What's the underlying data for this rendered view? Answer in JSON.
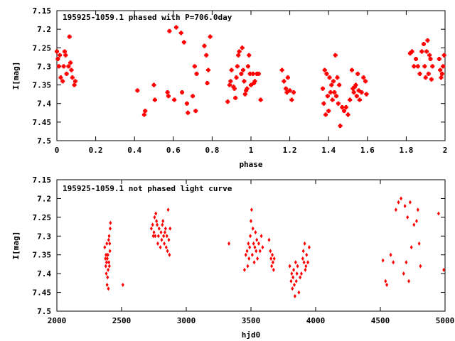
{
  "chart_data": [
    {
      "type": "scatter",
      "title": "195925-1059.1 phased with P=706.0day",
      "xlabel": "phase",
      "ylabel": "I[mag]",
      "xlim": [
        0,
        2
      ],
      "ylim": [
        7.15,
        7.5
      ],
      "y_inverted": true,
      "x_ticks": [
        "0",
        "0.2",
        "0.4",
        "0.6",
        "0.8",
        "1",
        "1.2",
        "1.4",
        "1.6",
        "1.8",
        "2"
      ],
      "y_ticks": [
        "7.15",
        "7.2",
        "7.25",
        "7.3",
        "7.35",
        "7.4",
        "7.45",
        "7.5"
      ],
      "marker_color": "#ff0000",
      "marker": "plus",
      "points": [
        [
          0.0,
          7.26
        ],
        [
          0.005,
          7.28
        ],
        [
          0.01,
          7.3
        ],
        [
          0.015,
          7.27
        ],
        [
          0.02,
          7.33
        ],
        [
          0.03,
          7.34
        ],
        [
          0.035,
          7.3
        ],
        [
          0.04,
          7.26
        ],
        [
          0.045,
          7.27
        ],
        [
          0.05,
          7.32
        ],
        [
          0.06,
          7.3
        ],
        [
          0.065,
          7.22
        ],
        [
          0.07,
          7.29
        ],
        [
          0.075,
          7.31
        ],
        [
          0.08,
          7.33
        ],
        [
          0.09,
          7.35
        ],
        [
          0.095,
          7.34
        ],
        [
          0.415,
          7.365
        ],
        [
          0.45,
          7.43
        ],
        [
          0.455,
          7.42
        ],
        [
          0.5,
          7.35
        ],
        [
          0.505,
          7.39
        ],
        [
          0.57,
          7.37
        ],
        [
          0.575,
          7.38
        ],
        [
          0.58,
          7.205
        ],
        [
          0.605,
          7.39
        ],
        [
          0.615,
          7.195
        ],
        [
          0.64,
          7.21
        ],
        [
          0.645,
          7.37
        ],
        [
          0.655,
          7.235
        ],
        [
          0.67,
          7.4
        ],
        [
          0.675,
          7.425
        ],
        [
          0.7,
          7.38
        ],
        [
          0.71,
          7.3
        ],
        [
          0.715,
          7.42
        ],
        [
          0.72,
          7.32
        ],
        [
          0.76,
          7.245
        ],
        [
          0.77,
          7.27
        ],
        [
          0.775,
          7.345
        ],
        [
          0.78,
          7.31
        ],
        [
          0.79,
          7.22
        ],
        [
          0.88,
          7.395
        ],
        [
          0.89,
          7.35
        ],
        [
          0.895,
          7.34
        ],
        [
          0.9,
          7.31
        ],
        [
          0.91,
          7.355
        ],
        [
          0.915,
          7.36
        ],
        [
          0.92,
          7.385
        ],
        [
          0.925,
          7.33
        ],
        [
          0.93,
          7.3
        ],
        [
          0.935,
          7.27
        ],
        [
          0.94,
          7.26
        ],
        [
          0.95,
          7.32
        ],
        [
          0.955,
          7.25
        ],
        [
          0.96,
          7.31
        ],
        [
          0.965,
          7.34
        ],
        [
          0.97,
          7.375
        ],
        [
          0.975,
          7.365
        ],
        [
          0.98,
          7.36
        ],
        [
          0.985,
          7.3
        ],
        [
          0.99,
          7.27
        ],
        [
          0.995,
          7.32
        ],
        [
          1.0,
          7.35
        ],
        [
          1.01,
          7.32
        ],
        [
          1.015,
          7.345
        ],
        [
          1.02,
          7.34
        ],
        [
          1.03,
          7.32
        ],
        [
          1.04,
          7.32
        ],
        [
          1.05,
          7.39
        ],
        [
          1.16,
          7.31
        ],
        [
          1.17,
          7.34
        ],
        [
          1.18,
          7.36
        ],
        [
          1.185,
          7.37
        ],
        [
          1.19,
          7.33
        ],
        [
          1.2,
          7.365
        ],
        [
          1.21,
          7.39
        ],
        [
          1.22,
          7.37
        ],
        [
          1.37,
          7.36
        ],
        [
          1.375,
          7.4
        ],
        [
          1.38,
          7.31
        ],
        [
          1.385,
          7.43
        ],
        [
          1.39,
          7.32
        ],
        [
          1.395,
          7.38
        ],
        [
          1.4,
          7.42
        ],
        [
          1.405,
          7.33
        ],
        [
          1.41,
          7.37
        ],
        [
          1.415,
          7.35
        ],
        [
          1.42,
          7.39
        ],
        [
          1.425,
          7.34
        ],
        [
          1.43,
          7.37
        ],
        [
          1.435,
          7.27
        ],
        [
          1.44,
          7.38
        ],
        [
          1.445,
          7.33
        ],
        [
          1.45,
          7.4
        ],
        [
          1.455,
          7.35
        ],
        [
          1.46,
          7.46
        ],
        [
          1.47,
          7.41
        ],
        [
          1.48,
          7.42
        ],
        [
          1.49,
          7.41
        ],
        [
          1.5,
          7.43
        ],
        [
          1.51,
          7.39
        ],
        [
          1.52,
          7.31
        ],
        [
          1.525,
          7.36
        ],
        [
          1.53,
          7.37
        ],
        [
          1.535,
          7.355
        ],
        [
          1.54,
          7.35
        ],
        [
          1.545,
          7.38
        ],
        [
          1.55,
          7.32
        ],
        [
          1.555,
          7.365
        ],
        [
          1.56,
          7.39
        ],
        [
          1.57,
          7.37
        ],
        [
          1.58,
          7.33
        ],
        [
          1.59,
          7.34
        ],
        [
          1.595,
          7.375
        ],
        [
          1.82,
          7.265
        ],
        [
          1.83,
          7.26
        ],
        [
          1.84,
          7.3
        ],
        [
          1.85,
          7.28
        ],
        [
          1.86,
          7.3
        ],
        [
          1.87,
          7.32
        ],
        [
          1.88,
          7.26
        ],
        [
          1.89,
          7.24
        ],
        [
          1.895,
          7.3
        ],
        [
          1.9,
          7.33
        ],
        [
          1.905,
          7.26
        ],
        [
          1.91,
          7.23
        ],
        [
          1.915,
          7.32
        ],
        [
          1.92,
          7.27
        ],
        [
          1.925,
          7.28
        ],
        [
          1.93,
          7.335
        ],
        [
          1.935,
          7.3
        ],
        [
          1.97,
          7.28
        ],
        [
          1.975,
          7.31
        ],
        [
          1.98,
          7.33
        ],
        [
          1.985,
          7.32
        ],
        [
          1.99,
          7.3
        ],
        [
          1.995,
          7.27
        ]
      ]
    },
    {
      "type": "scatter",
      "title": "195925-1059.1 not phased light curve",
      "xlabel": "hjd0",
      "ylabel": "I[mag]",
      "xlim": [
        2000,
        5000
      ],
      "ylim": [
        7.15,
        7.5
      ],
      "y_inverted": true,
      "x_ticks": [
        "2000",
        "2500",
        "3000",
        "3500",
        "4000",
        "4500",
        "5000"
      ],
      "y_ticks": [
        "7.15",
        "7.2",
        "7.25",
        "7.3",
        "7.35",
        "7.4",
        "7.45",
        "7.5"
      ],
      "marker_color": "#ff0000",
      "marker": "diamond",
      "points": [
        [
          2370,
          7.33
        ],
        [
          2375,
          7.36
        ],
        [
          2378,
          7.38
        ],
        [
          2380,
          7.35
        ],
        [
          2382,
          7.4
        ],
        [
          2384,
          7.37
        ],
        [
          2386,
          7.32
        ],
        [
          2388,
          7.43
        ],
        [
          2390,
          7.36
        ],
        [
          2392,
          7.41
        ],
        [
          2394,
          7.35
        ],
        [
          2396,
          7.39
        ],
        [
          2398,
          7.44
        ],
        [
          2400,
          7.31
        ],
        [
          2402,
          7.37
        ],
        [
          2404,
          7.3
        ],
        [
          2406,
          7.38
        ],
        [
          2408,
          7.32
        ],
        [
          2410,
          7.34
        ],
        [
          2412,
          7.28
        ],
        [
          2414,
          7.265
        ],
        [
          2510,
          7.43
        ],
        [
          2730,
          7.28
        ],
        [
          2740,
          7.27
        ],
        [
          2745,
          7.3
        ],
        [
          2750,
          7.29
        ],
        [
          2755,
          7.25
        ],
        [
          2760,
          7.3
        ],
        [
          2765,
          7.24
        ],
        [
          2770,
          7.26
        ],
        [
          2775,
          7.27
        ],
        [
          2780,
          7.32
        ],
        [
          2785,
          7.3
        ],
        [
          2790,
          7.28
        ],
        [
          2800,
          7.33
        ],
        [
          2805,
          7.29
        ],
        [
          2810,
          7.31
        ],
        [
          2815,
          7.27
        ],
        [
          2820,
          7.26
        ],
        [
          2825,
          7.3
        ],
        [
          2830,
          7.32
        ],
        [
          2835,
          7.29
        ],
        [
          2840,
          7.28
        ],
        [
          2845,
          7.33
        ],
        [
          2850,
          7.3
        ],
        [
          2855,
          7.34
        ],
        [
          2860,
          7.23
        ],
        [
          2865,
          7.31
        ],
        [
          2870,
          7.35
        ],
        [
          2875,
          7.28
        ],
        [
          3330,
          7.32
        ],
        [
          3450,
          7.39
        ],
        [
          3460,
          7.35
        ],
        [
          3470,
          7.34
        ],
        [
          3475,
          7.38
        ],
        [
          3480,
          7.32
        ],
        [
          3485,
          7.36
        ],
        [
          3490,
          7.33
        ],
        [
          3495,
          7.3
        ],
        [
          3500,
          7.26
        ],
        [
          3505,
          7.23
        ],
        [
          3510,
          7.35
        ],
        [
          3515,
          7.28
        ],
        [
          3520,
          7.32
        ],
        [
          3525,
          7.37
        ],
        [
          3530,
          7.33
        ],
        [
          3535,
          7.29
        ],
        [
          3540,
          7.34
        ],
        [
          3545,
          7.31
        ],
        [
          3550,
          7.36
        ],
        [
          3560,
          7.32
        ],
        [
          3570,
          7.34
        ],
        [
          3580,
          7.3
        ],
        [
          3590,
          7.33
        ],
        [
          3640,
          7.31
        ],
        [
          3650,
          7.34
        ],
        [
          3655,
          7.36
        ],
        [
          3660,
          7.38
        ],
        [
          3665,
          7.35
        ],
        [
          3670,
          7.37
        ],
        [
          3675,
          7.39
        ],
        [
          3680,
          7.36
        ],
        [
          3800,
          7.38
        ],
        [
          3810,
          7.42
        ],
        [
          3815,
          7.4
        ],
        [
          3820,
          7.44
        ],
        [
          3825,
          7.41
        ],
        [
          3830,
          7.39
        ],
        [
          3835,
          7.43
        ],
        [
          3840,
          7.46
        ],
        [
          3845,
          7.37
        ],
        [
          3850,
          7.42
        ],
        [
          3855,
          7.4
        ],
        [
          3860,
          7.38
        ],
        [
          3870,
          7.45
        ],
        [
          3880,
          7.41
        ],
        [
          3890,
          7.4
        ],
        [
          3900,
          7.36
        ],
        [
          3905,
          7.34
        ],
        [
          3910,
          7.37
        ],
        [
          3915,
          7.32
        ],
        [
          3920,
          7.39
        ],
        [
          3925,
          7.38
        ],
        [
          3930,
          7.35
        ],
        [
          3940,
          7.37
        ],
        [
          3950,
          7.33
        ],
        [
          4520,
          7.365
        ],
        [
          4540,
          7.42
        ],
        [
          4550,
          7.43
        ],
        [
          4580,
          7.35
        ],
        [
          4600,
          7.37
        ],
        [
          4620,
          7.23
        ],
        [
          4640,
          7.21
        ],
        [
          4660,
          7.2
        ],
        [
          4680,
          7.4
        ],
        [
          4690,
          7.22
        ],
        [
          4700,
          7.37
        ],
        [
          4710,
          7.25
        ],
        [
          4720,
          7.42
        ],
        [
          4730,
          7.21
        ],
        [
          4740,
          7.33
        ],
        [
          4760,
          7.27
        ],
        [
          4780,
          7.26
        ],
        [
          4790,
          7.23
        ],
        [
          4800,
          7.32
        ],
        [
          4810,
          7.38
        ],
        [
          4950,
          7.24
        ],
        [
          4990,
          7.39
        ]
      ]
    }
  ]
}
